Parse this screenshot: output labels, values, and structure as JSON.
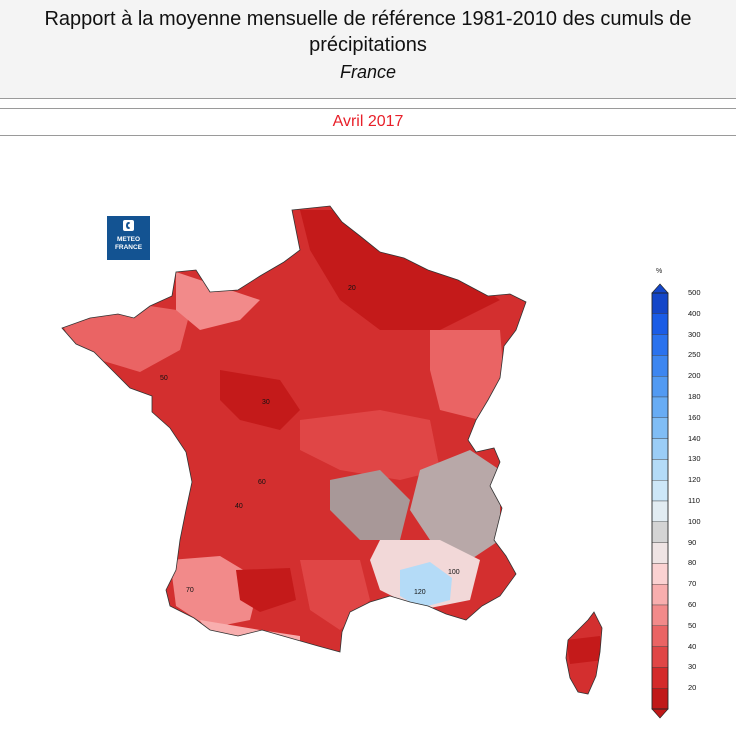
{
  "header": {
    "title": "Rapport à la moyenne mensuelle de référence 1981-2010 des cumuls de précipitations",
    "subtitle": "France"
  },
  "period": {
    "label": "Avril 2017",
    "color": "#e8202a"
  },
  "logo": {
    "line1": "METEO",
    "line2": "FRANCE",
    "color": "#135392"
  },
  "legend": {
    "unit": "%",
    "levels": [
      {
        "value": "500",
        "color": "#1446c8"
      },
      {
        "value": "400",
        "color": "#1a5ce6"
      },
      {
        "value": "300",
        "color": "#2a72ee"
      },
      {
        "value": "250",
        "color": "#3d86f0"
      },
      {
        "value": "200",
        "color": "#529af2"
      },
      {
        "value": "180",
        "color": "#68acf4"
      },
      {
        "value": "160",
        "color": "#80bdf5"
      },
      {
        "value": "140",
        "color": "#9bcdf6"
      },
      {
        "value": "130",
        "color": "#b4dbf7"
      },
      {
        "value": "120",
        "color": "#cde7f8"
      },
      {
        "value": "110",
        "color": "#e2ecf2"
      },
      {
        "value": "100",
        "color": "#d4d4d4"
      },
      {
        "value": "90",
        "color": "#efe4e4"
      },
      {
        "value": "80",
        "color": "#fbd2d2"
      },
      {
        "value": "70",
        "color": "#f8aeae"
      },
      {
        "value": "60",
        "color": "#f28a8a"
      },
      {
        "value": "50",
        "color": "#ea6464"
      },
      {
        "value": "40",
        "color": "#e04646"
      },
      {
        "value": "30",
        "color": "#d42a2a"
      },
      {
        "value": "20",
        "color": "#c01818"
      }
    ]
  },
  "map_labels": [
    {
      "text": "100"
    },
    {
      "text": "120"
    },
    {
      "text": "40"
    },
    {
      "text": "50"
    },
    {
      "text": "30"
    },
    {
      "text": "20"
    },
    {
      "text": "60"
    },
    {
      "text": "70"
    }
  ]
}
